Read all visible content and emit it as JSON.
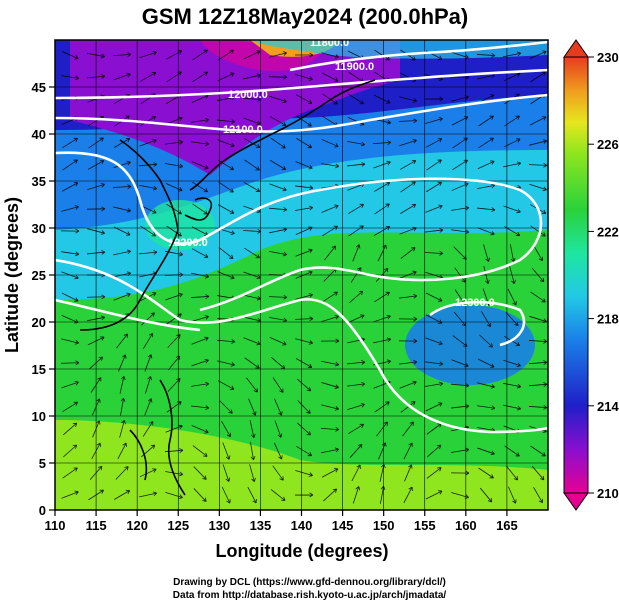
{
  "chart_data": {
    "type": "heatmap",
    "title": "GSM 12Z18May2024 (200.0hPa)",
    "xlabel": "Longitude (degrees)",
    "ylabel": "Latitude (degrees)",
    "xlim": [
      110,
      170
    ],
    "ylim": [
      0,
      50
    ],
    "x_ticks": [
      "110",
      "115",
      "120",
      "125",
      "130",
      "135",
      "140",
      "145",
      "150",
      "155",
      "160",
      "165"
    ],
    "y_ticks": [
      "0",
      "5",
      "10",
      "15",
      "20",
      "25",
      "30",
      "35",
      "40",
      "45"
    ],
    "colorbar": {
      "min": 210,
      "max": 230,
      "tick_labels": [
        "210",
        "214",
        "218",
        "222",
        "226",
        "230"
      ],
      "colors": [
        "#e60092",
        "#8a0fd0",
        "#1f1fc8",
        "#1a7fe8",
        "#22c8e6",
        "#1ee6a0",
        "#2ad23a",
        "#8fe61e",
        "#e6e61e",
        "#f0a01e",
        "#e63c1e"
      ]
    },
    "contours": [
      {
        "label": "11800.0"
      },
      {
        "label": "11900.0"
      },
      {
        "label": "12000.0"
      },
      {
        "label": "12100.0"
      },
      {
        "label": "12200.0"
      },
      {
        "label": "12300.0"
      }
    ],
    "grid": true
  },
  "credits": {
    "line1": "Drawing by DCL (https://www.gfd-dennou.org/library/dcl/)",
    "line2": "Data from http://database.rish.kyoto-u.ac.jp/arch/jmadata/"
  }
}
